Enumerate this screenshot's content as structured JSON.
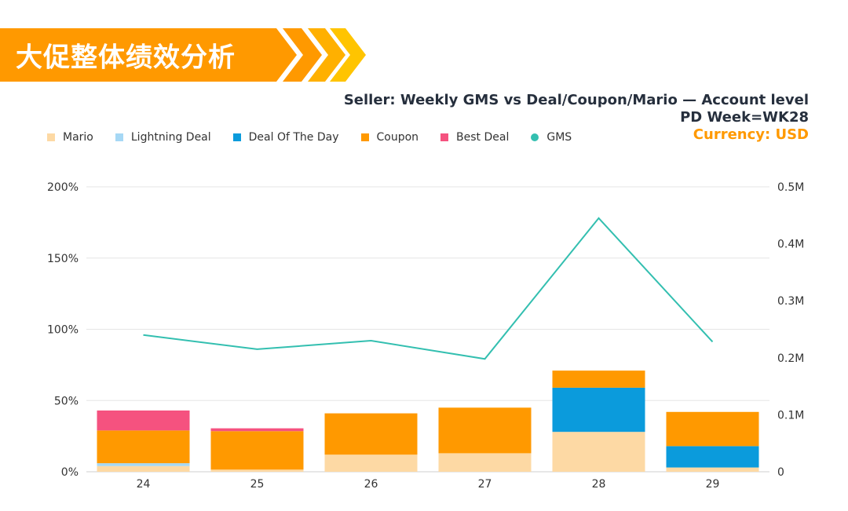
{
  "banner": {
    "title": "大促整体绩效分析"
  },
  "header": {
    "title": "Seller: Weekly GMS vs Deal/Coupon/Mario — Account level",
    "subtitle": "PD Week=WK28",
    "currency": "Currency: USD"
  },
  "colors": {
    "banner": "#ff9900",
    "Mario": "#fdd9a4",
    "Lightning Deal": "#a6d8f5",
    "Deal Of The Day": "#0b9bdc",
    "Coupon": "#ff9900",
    "Best Deal": "#f5527f",
    "GMS": "#33bfb0",
    "currency_text": "#ff9900"
  },
  "chart_data": {
    "type": "bar",
    "stacked": true,
    "categories": [
      "24",
      "25",
      "26",
      "27",
      "28",
      "29"
    ],
    "series": [
      {
        "name": "Mario",
        "values": [
          4,
          1.5,
          12,
          13,
          28,
          3
        ]
      },
      {
        "name": "Lightning Deal",
        "values": [
          2,
          0,
          0,
          0,
          0,
          0
        ]
      },
      {
        "name": "Deal Of The Day",
        "values": [
          0,
          0,
          0,
          0,
          31,
          15
        ]
      },
      {
        "name": "Coupon",
        "values": [
          23,
          27,
          29,
          32,
          12,
          24
        ]
      },
      {
        "name": "Best Deal",
        "values": [
          14,
          2,
          0,
          0,
          0,
          0
        ]
      }
    ],
    "line_series": {
      "name": "GMS",
      "values": [
        0.24,
        0.215,
        0.23,
        0.198,
        0.445,
        0.228
      ]
    },
    "y_left": {
      "ylim": [
        0,
        200
      ],
      "ticks": [
        "0%",
        "50%",
        "100%",
        "150%",
        "200%"
      ]
    },
    "y_right": {
      "ylim": [
        0,
        0.5
      ],
      "ticks": [
        "0",
        "0.1M",
        "0.2M",
        "0.3M",
        "0.4M",
        "0.5M"
      ]
    },
    "grid": true,
    "legend": "top-left"
  }
}
